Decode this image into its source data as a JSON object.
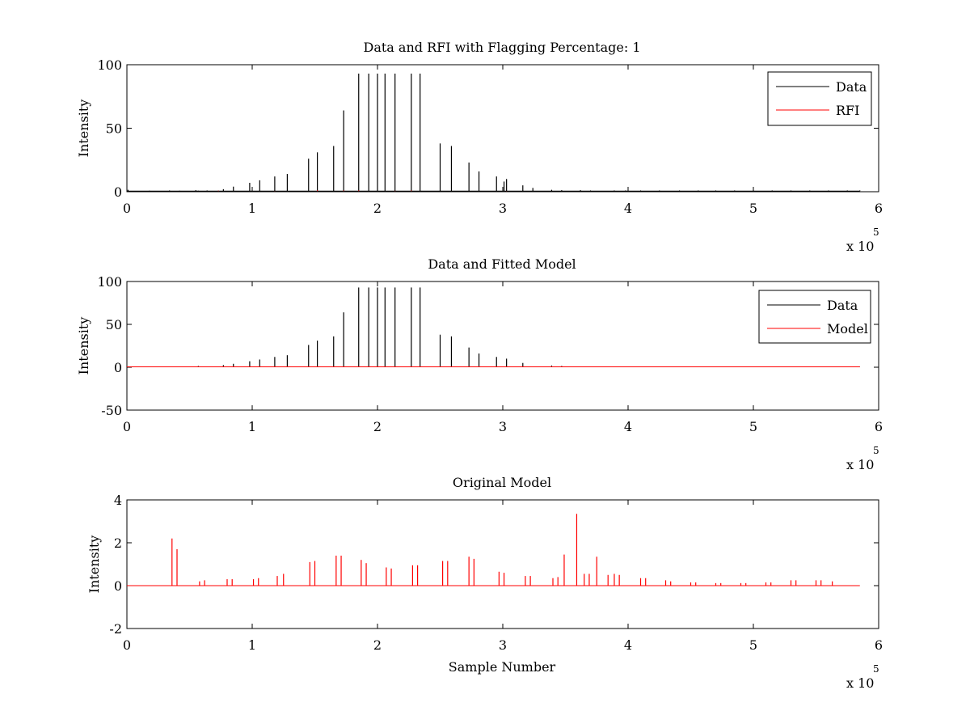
{
  "colors": {
    "data": "#000000",
    "rfi": "#ff0000",
    "model": "#ff0000",
    "original": "#ff0000"
  },
  "chart_data": [
    {
      "type": "line",
      "title": "Data and RFI with Flagging Percentage: 1",
      "xlabel": "",
      "ylabel": "Intensity",
      "xlim": [
        0,
        600000
      ],
      "ylim": [
        0,
        100
      ],
      "xticks": [
        0,
        1,
        2,
        3,
        4,
        5,
        6
      ],
      "yticks": [
        0,
        50,
        100
      ],
      "x_exponent": "x 10",
      "x_exponent_power": "5",
      "legend": {
        "position": "top-right",
        "entries": [
          "Data",
          "RFI"
        ]
      },
      "series": [
        {
          "name": "Data",
          "color": "#000000",
          "x": [
            900,
            18000,
            34000,
            42000,
            55000,
            57000,
            64000,
            73000,
            77000,
            85000,
            98000,
            106000,
            118000,
            128000,
            145000,
            152000,
            165000,
            173000,
            185000,
            193000,
            200000,
            206000,
            214000,
            227000,
            234000,
            250000,
            259000,
            273000,
            281000,
            295000,
            301000,
            303000,
            316000,
            324000,
            339000,
            347000,
            362000,
            370000,
            389000,
            398000,
            410000,
            425000,
            441000,
            456000,
            470000,
            485000,
            500000,
            515000,
            530000,
            545000,
            560000,
            575000,
            585000
          ],
          "y": [
            1.5,
            0.8,
            1,
            0.8,
            1.2,
            0.8,
            1,
            0.8,
            2,
            4,
            7,
            9,
            12,
            14,
            26,
            31,
            36,
            64,
            93,
            93,
            93,
            93,
            93,
            93,
            93,
            38,
            36,
            23,
            16,
            12,
            8,
            10,
            5,
            3,
            1.5,
            1.2,
            1.2,
            1,
            1,
            1,
            1,
            1,
            1,
            1,
            1,
            1,
            1,
            1,
            1,
            1,
            1,
            1,
            1
          ]
        },
        {
          "name": "RFI",
          "color": "#ff0000",
          "x": [
            73000,
            118000,
            152000,
            173000,
            185000,
            214000,
            227000,
            303000
          ],
          "y": [
            0.8,
            0.6,
            1.1,
            0.9,
            1.0,
            0.7,
            0.9,
            0.6
          ]
        }
      ]
    },
    {
      "type": "line",
      "title": "Data and Fitted Model",
      "xlabel": "",
      "ylabel": "Intensity",
      "xlim": [
        0,
        600000
      ],
      "ylim": [
        -50,
        100
      ],
      "xticks": [
        0,
        1,
        2,
        3,
        4,
        5,
        6
      ],
      "yticks": [
        -50,
        0,
        50,
        100
      ],
      "x_exponent": "x 10",
      "x_exponent_power": "5",
      "legend": {
        "position": "top-right",
        "entries": [
          "Data",
          "Model"
        ]
      },
      "series": [
        {
          "name": "Data",
          "color": "#000000",
          "x": [
            57000,
            77000,
            85000,
            98000,
            106000,
            118000,
            128000,
            145000,
            152000,
            165000,
            173000,
            185000,
            193000,
            200000,
            206000,
            214000,
            227000,
            234000,
            250000,
            259000,
            273000,
            281000,
            295000,
            303000,
            316000,
            339000,
            347000
          ],
          "y": [
            1.5,
            2.5,
            4,
            7,
            9,
            12,
            14,
            26,
            31,
            36,
            64,
            93,
            93,
            93,
            93,
            93,
            93,
            93,
            38,
            36,
            23,
            16,
            12,
            10,
            5,
            2,
            1.5
          ]
        },
        {
          "name": "Model",
          "color": "#ff0000",
          "x": [
            0,
            585000
          ],
          "y": [
            0.5,
            0.5
          ]
        }
      ]
    },
    {
      "type": "line",
      "title": "Original Model",
      "xlabel": "Sample Number",
      "ylabel": "Intensity",
      "xlim": [
        0,
        600000
      ],
      "ylim": [
        -2,
        4
      ],
      "xticks": [
        0,
        1,
        2,
        3,
        4,
        5,
        6
      ],
      "yticks": [
        -2,
        0,
        2,
        4
      ],
      "x_exponent": "x 10",
      "x_exponent_power": "5",
      "series": [
        {
          "name": "",
          "color": "#ff0000",
          "x": [
            36000,
            40000,
            58000,
            62000,
            80000,
            84000,
            101000,
            105000,
            120000,
            125000,
            146000,
            150000,
            167000,
            171000,
            187000,
            191000,
            207000,
            211000,
            228000,
            232000,
            252000,
            256000,
            273000,
            277000,
            297000,
            301000,
            318000,
            322000,
            340000,
            344000,
            349000,
            359000,
            365000,
            369000,
            375000,
            384000,
            389000,
            393000,
            410000,
            414000,
            430000,
            434000,
            450000,
            454000,
            470000,
            474000,
            490000,
            494000,
            510000,
            514000,
            530000,
            534000,
            550000,
            554000,
            563000
          ],
          "y": [
            2.2,
            1.7,
            0.2,
            0.25,
            0.3,
            0.3,
            0.3,
            0.35,
            0.45,
            0.55,
            1.1,
            1.15,
            1.4,
            1.4,
            1.2,
            1.05,
            0.85,
            0.8,
            0.95,
            0.95,
            1.15,
            1.15,
            1.35,
            1.25,
            0.65,
            0.6,
            0.45,
            0.45,
            0.35,
            0.4,
            1.45,
            3.35,
            0.55,
            0.55,
            1.35,
            0.5,
            0.55,
            0.5,
            0.35,
            0.35,
            0.25,
            0.2,
            0.15,
            0.15,
            0.12,
            0.12,
            0.12,
            0.12,
            0.15,
            0.15,
            0.25,
            0.25,
            0.25,
            0.25,
            0.2
          ]
        }
      ]
    }
  ]
}
